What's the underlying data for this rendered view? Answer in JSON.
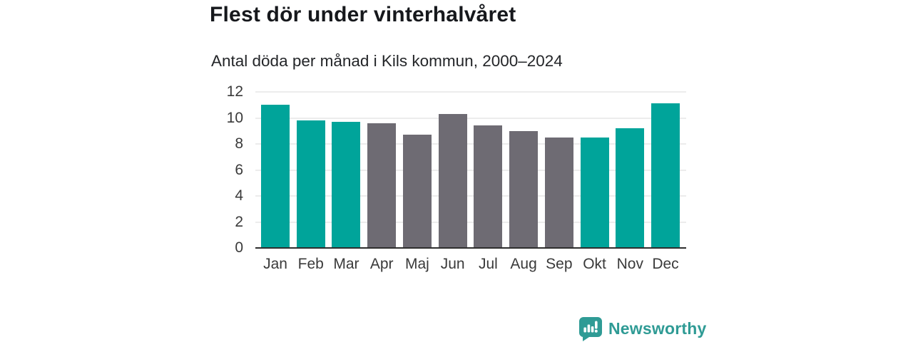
{
  "chart_data": {
    "type": "bar",
    "title": "Flest dör under vinterhalvåret",
    "subtitle": "Antal döda per månad i Kils kommun, 2000–2024",
    "categories": [
      "Jan",
      "Feb",
      "Mar",
      "Apr",
      "Maj",
      "Jun",
      "Jul",
      "Aug",
      "Sep",
      "Okt",
      "Nov",
      "Dec"
    ],
    "values": [
      11.0,
      9.8,
      9.7,
      9.6,
      8.7,
      10.3,
      9.4,
      9.0,
      8.5,
      8.5,
      9.2,
      11.1
    ],
    "winter_months": [
      true,
      true,
      true,
      false,
      false,
      false,
      false,
      false,
      false,
      true,
      true,
      true
    ],
    "xlabel": "",
    "ylabel": "",
    "ylim": [
      0,
      12
    ],
    "yticks": [
      0,
      2,
      4,
      6,
      8,
      10,
      12
    ],
    "grid": true,
    "legend_position": "none",
    "colors": {
      "winter_bar": "#00a49a",
      "summer_bar": "#6e6b73",
      "gridline": "#ececec",
      "axis_line": "#2e2e2e",
      "tick_text": "#3a3a3a"
    }
  },
  "footer": {
    "brand": "Newsworthy",
    "brand_color": "#2f9b95",
    "brand_icon": "bar-chart-speech-bubble-icon"
  }
}
